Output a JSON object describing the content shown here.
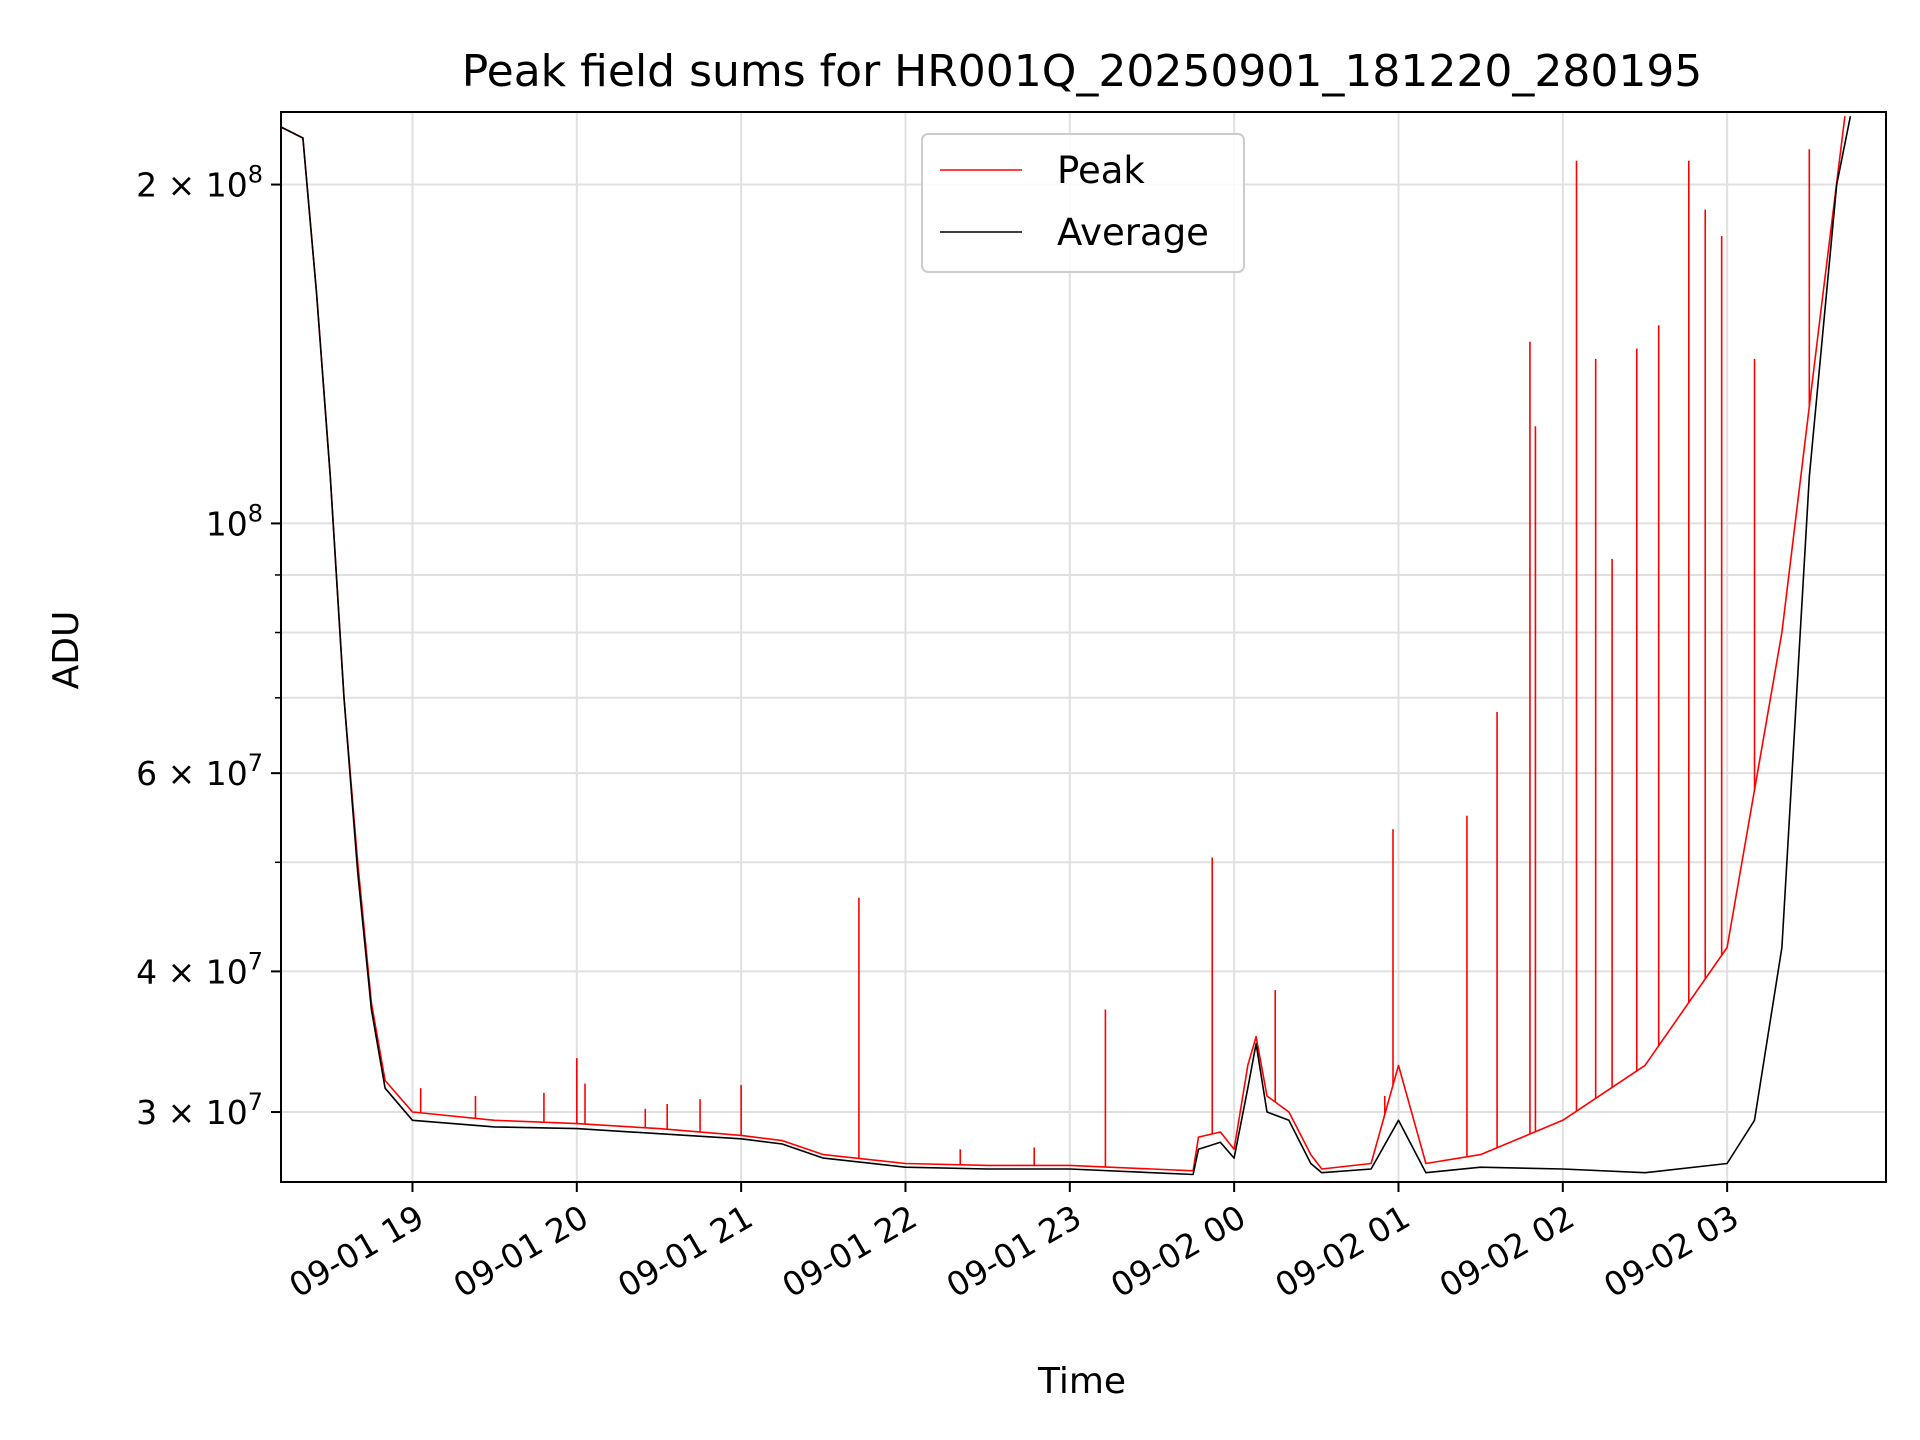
{
  "chart_data": {
    "type": "line",
    "title": "Peak field sums for HR001Q_20250901_181220_280195",
    "xlabel": "Time",
    "ylabel": "ADU",
    "x_scale": "time",
    "y_scale": "log",
    "xlim": [
      "2025-09-01 18:12",
      "2025-09-02 03:58"
    ],
    "ylim": [
      26000000,
      232000000
    ],
    "grid": true,
    "legend_position": "top-center",
    "x_ticks": [
      {
        "value": "2025-09-01 19:00",
        "label": "09-01 19"
      },
      {
        "value": "2025-09-01 20:00",
        "label": "09-01 20"
      },
      {
        "value": "2025-09-01 21:00",
        "label": "09-01 21"
      },
      {
        "value": "2025-09-01 22:00",
        "label": "09-01 22"
      },
      {
        "value": "2025-09-01 23:00",
        "label": "09-01 23"
      },
      {
        "value": "2025-09-02 00:00",
        "label": "09-02 00"
      },
      {
        "value": "2025-09-02 01:00",
        "label": "09-02 01"
      },
      {
        "value": "2025-09-02 02:00",
        "label": "09-02 02"
      },
      {
        "value": "2025-09-02 03:00",
        "label": "09-02 03"
      }
    ],
    "y_ticks": [
      {
        "value": 30000000,
        "mant": "3",
        "exp": "7"
      },
      {
        "value": 40000000,
        "mant": "4",
        "exp": "7"
      },
      {
        "value": 60000000,
        "mant": "6",
        "exp": "7"
      },
      {
        "value": 100000000,
        "mant": "",
        "exp": "8"
      },
      {
        "value": 200000000,
        "mant": "2",
        "exp": "8"
      }
    ],
    "y_minor_ticks": [
      50000000,
      70000000,
      80000000,
      90000000
    ],
    "series": [
      {
        "name": "Peak",
        "color": "#ff0000",
        "points": [
          [
            "2025-09-01 18:12",
            225000000
          ],
          [
            "2025-09-01 18:20",
            220000000
          ],
          [
            "2025-09-01 18:25",
            160000000
          ],
          [
            "2025-09-01 18:30",
            110000000
          ],
          [
            "2025-09-01 18:35",
            70000000
          ],
          [
            "2025-09-01 18:40",
            50000000
          ],
          [
            "2025-09-01 18:45",
            37500000
          ],
          [
            "2025-09-01 18:50",
            32000000
          ],
          [
            "2025-09-01 19:00",
            30000000
          ],
          [
            "2025-09-01 19:30",
            29500000
          ],
          [
            "2025-09-01 20:00",
            29300000
          ],
          [
            "2025-09-01 20:30",
            29000000
          ],
          [
            "2025-09-01 21:00",
            28600000
          ],
          [
            "2025-09-01 21:15",
            28300000
          ],
          [
            "2025-09-01 21:30",
            27500000
          ],
          [
            "2025-09-01 22:00",
            27000000
          ],
          [
            "2025-09-01 22:30",
            26900000
          ],
          [
            "2025-09-01 23:00",
            26900000
          ],
          [
            "2025-09-01 23:30",
            26700000
          ],
          [
            "2025-09-01 23:45",
            26600000
          ],
          [
            "2025-09-01 23:47",
            28500000
          ],
          [
            "2025-09-01 23:55",
            28800000
          ],
          [
            "2025-09-02 00:00",
            27800000
          ],
          [
            "2025-09-02 00:05",
            33000000
          ],
          [
            "2025-09-02 00:08",
            35000000
          ],
          [
            "2025-09-02 00:12",
            31000000
          ],
          [
            "2025-09-02 00:20",
            30000000
          ],
          [
            "2025-09-02 00:28",
            27500000
          ],
          [
            "2025-09-02 00:32",
            26700000
          ],
          [
            "2025-09-02 00:50",
            27000000
          ],
          [
            "2025-09-02 01:00",
            33000000
          ],
          [
            "2025-09-02 01:10",
            27000000
          ],
          [
            "2025-09-02 01:30",
            27500000
          ],
          [
            "2025-09-02 02:00",
            29500000
          ],
          [
            "2025-09-02 02:30",
            33000000
          ],
          [
            "2025-09-02 03:00",
            42000000
          ],
          [
            "2025-09-02 03:20",
            80000000
          ],
          [
            "2025-09-02 03:35",
            160000000
          ],
          [
            "2025-09-02 03:43",
            230000000
          ]
        ],
        "spikes": [
          [
            "2025-09-01 19:03",
            31500000
          ],
          [
            "2025-09-01 19:23",
            31000000
          ],
          [
            "2025-09-01 19:48",
            31200000
          ],
          [
            "2025-09-01 20:00",
            33500000
          ],
          [
            "2025-09-01 20:03",
            31800000
          ],
          [
            "2025-09-01 20:25",
            30200000
          ],
          [
            "2025-09-01 20:33",
            30500000
          ],
          [
            "2025-09-01 20:45",
            30800000
          ],
          [
            "2025-09-01 21:00",
            31700000
          ],
          [
            "2025-09-01 21:43",
            46500000
          ],
          [
            "2025-09-01 22:20",
            27800000
          ],
          [
            "2025-09-01 22:47",
            27900000
          ],
          [
            "2025-09-01 23:13",
            37000000
          ],
          [
            "2025-09-01 23:52",
            50500000
          ],
          [
            "2025-09-02 00:15",
            38500000
          ],
          [
            "2025-09-02 00:55",
            31000000
          ],
          [
            "2025-09-02 00:58",
            53500000
          ],
          [
            "2025-09-02 01:25",
            55000000
          ],
          [
            "2025-09-02 01:36",
            68000000
          ],
          [
            "2025-09-02 01:48",
            145000000
          ],
          [
            "2025-09-02 01:50",
            122000000
          ],
          [
            "2025-09-02 02:05",
            210000000
          ],
          [
            "2025-09-02 02:12",
            140000000
          ],
          [
            "2025-09-02 02:18",
            93000000
          ],
          [
            "2025-09-02 02:27",
            143000000
          ],
          [
            "2025-09-02 02:35",
            150000000
          ],
          [
            "2025-09-02 02:46",
            210000000
          ],
          [
            "2025-09-02 02:52",
            190000000
          ],
          [
            "2025-09-02 02:58",
            180000000
          ],
          [
            "2025-09-02 03:10",
            140000000
          ],
          [
            "2025-09-02 03:30",
            215000000
          ]
        ]
      },
      {
        "name": "Average",
        "color": "#000000",
        "points": [
          [
            "2025-09-01 18:12",
            225000000
          ],
          [
            "2025-09-01 18:20",
            220000000
          ],
          [
            "2025-09-01 18:25",
            160000000
          ],
          [
            "2025-09-01 18:30",
            110000000
          ],
          [
            "2025-09-01 18:35",
            70000000
          ],
          [
            "2025-09-01 18:40",
            49000000
          ],
          [
            "2025-09-01 18:45",
            37000000
          ],
          [
            "2025-09-01 18:50",
            31500000
          ],
          [
            "2025-09-01 19:00",
            29500000
          ],
          [
            "2025-09-01 19:30",
            29100000
          ],
          [
            "2025-09-01 20:00",
            29000000
          ],
          [
            "2025-09-01 20:30",
            28700000
          ],
          [
            "2025-09-01 21:00",
            28400000
          ],
          [
            "2025-09-01 21:15",
            28100000
          ],
          [
            "2025-09-01 21:30",
            27300000
          ],
          [
            "2025-09-01 22:00",
            26800000
          ],
          [
            "2025-09-01 22:30",
            26700000
          ],
          [
            "2025-09-01 23:00",
            26700000
          ],
          [
            "2025-09-01 23:30",
            26500000
          ],
          [
            "2025-09-01 23:45",
            26400000
          ],
          [
            "2025-09-01 23:47",
            27800000
          ],
          [
            "2025-09-01 23:55",
            28200000
          ],
          [
            "2025-09-02 00:00",
            27300000
          ],
          [
            "2025-09-02 00:05",
            31500000
          ],
          [
            "2025-09-02 00:08",
            34500000
          ],
          [
            "2025-09-02 00:12",
            30000000
          ],
          [
            "2025-09-02 00:20",
            29500000
          ],
          [
            "2025-09-02 00:28",
            27000000
          ],
          [
            "2025-09-02 00:32",
            26500000
          ],
          [
            "2025-09-02 00:50",
            26700000
          ],
          [
            "2025-09-02 01:00",
            29500000
          ],
          [
            "2025-09-02 01:10",
            26500000
          ],
          [
            "2025-09-02 01:30",
            26800000
          ],
          [
            "2025-09-02 02:00",
            26700000
          ],
          [
            "2025-09-02 02:30",
            26500000
          ],
          [
            "2025-09-02 03:00",
            27000000
          ],
          [
            "2025-09-02 03:10",
            29500000
          ],
          [
            "2025-09-02 03:20",
            42000000
          ],
          [
            "2025-09-02 03:30",
            110000000
          ],
          [
            "2025-09-02 03:40",
            200000000
          ],
          [
            "2025-09-02 03:45",
            230000000
          ]
        ]
      }
    ]
  }
}
